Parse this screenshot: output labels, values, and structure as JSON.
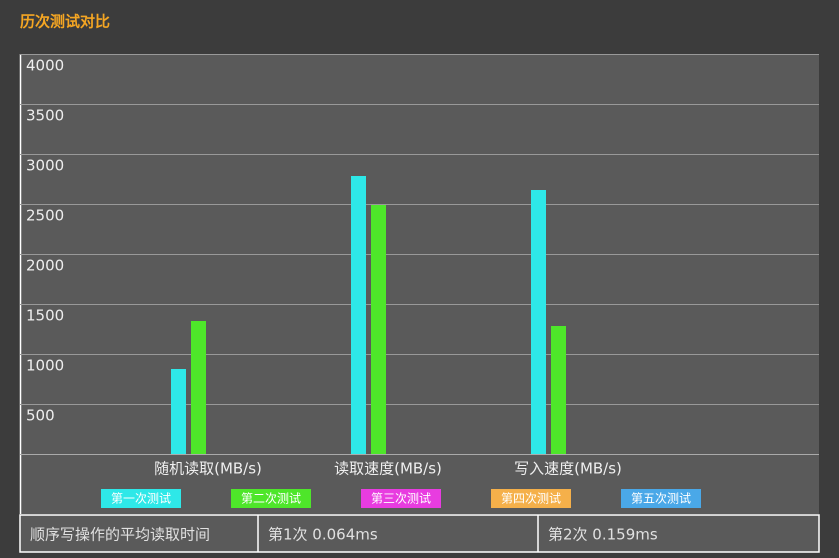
{
  "chart_data": {
    "type": "bar",
    "title": "历次测试对比",
    "categories": [
      "随机读取(MB/s)",
      "读取速度(MB/s)",
      "写入速度(MB/s)"
    ],
    "series": [
      {
        "name": "第一次测试",
        "color": "#2ee8e8",
        "values": [
          850,
          2780,
          2640
        ]
      },
      {
        "name": "第二次测试",
        "color": "#4ee62a",
        "values": [
          1330,
          2490,
          1280
        ]
      },
      {
        "name": "第三次测试",
        "color": "#e83ce0",
        "values": [
          null,
          null,
          null
        ]
      },
      {
        "name": "第四次测试",
        "color": "#f5b04a",
        "values": [
          null,
          null,
          null
        ]
      },
      {
        "name": "第五次测试",
        "color": "#4aa8e8",
        "values": [
          null,
          null,
          null
        ]
      }
    ],
    "ylim": [
      0,
      4000
    ],
    "yticks": [
      500,
      1000,
      1500,
      2000,
      2500,
      3000,
      3500,
      4000
    ],
    "grid": true
  },
  "table": {
    "cells": [
      "顺序写操作的平均读取时间",
      "第1次 0.064ms",
      "第2次 0.159ms"
    ]
  }
}
